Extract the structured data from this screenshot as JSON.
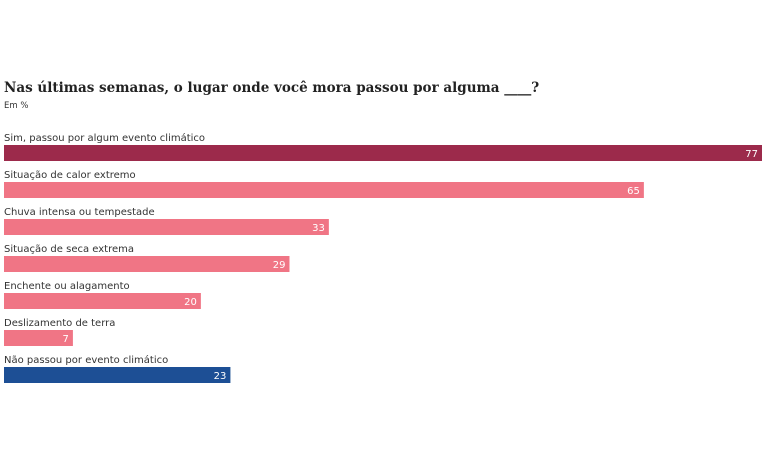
{
  "chart_data": {
    "type": "bar",
    "orientation": "horizontal",
    "title": "Nas últimas semanas, o lugar onde você mora passou por alguma ____?",
    "subtitle": "Em %",
    "categories": [
      "Sim, passou por algum evento climático",
      "Situação de calor extremo",
      "Chuva intensa ou tempestade",
      "Situação de seca extrema",
      "Enchente ou alagamento",
      "Deslizamento de terra",
      "Não passou por evento climático"
    ],
    "values": [
      77,
      65,
      33,
      29,
      20,
      7,
      23
    ],
    "colors": [
      "#9c2a4b",
      "#f07585",
      "#f07585",
      "#f07585",
      "#f07585",
      "#f07585",
      "#1d4f95"
    ]
  }
}
